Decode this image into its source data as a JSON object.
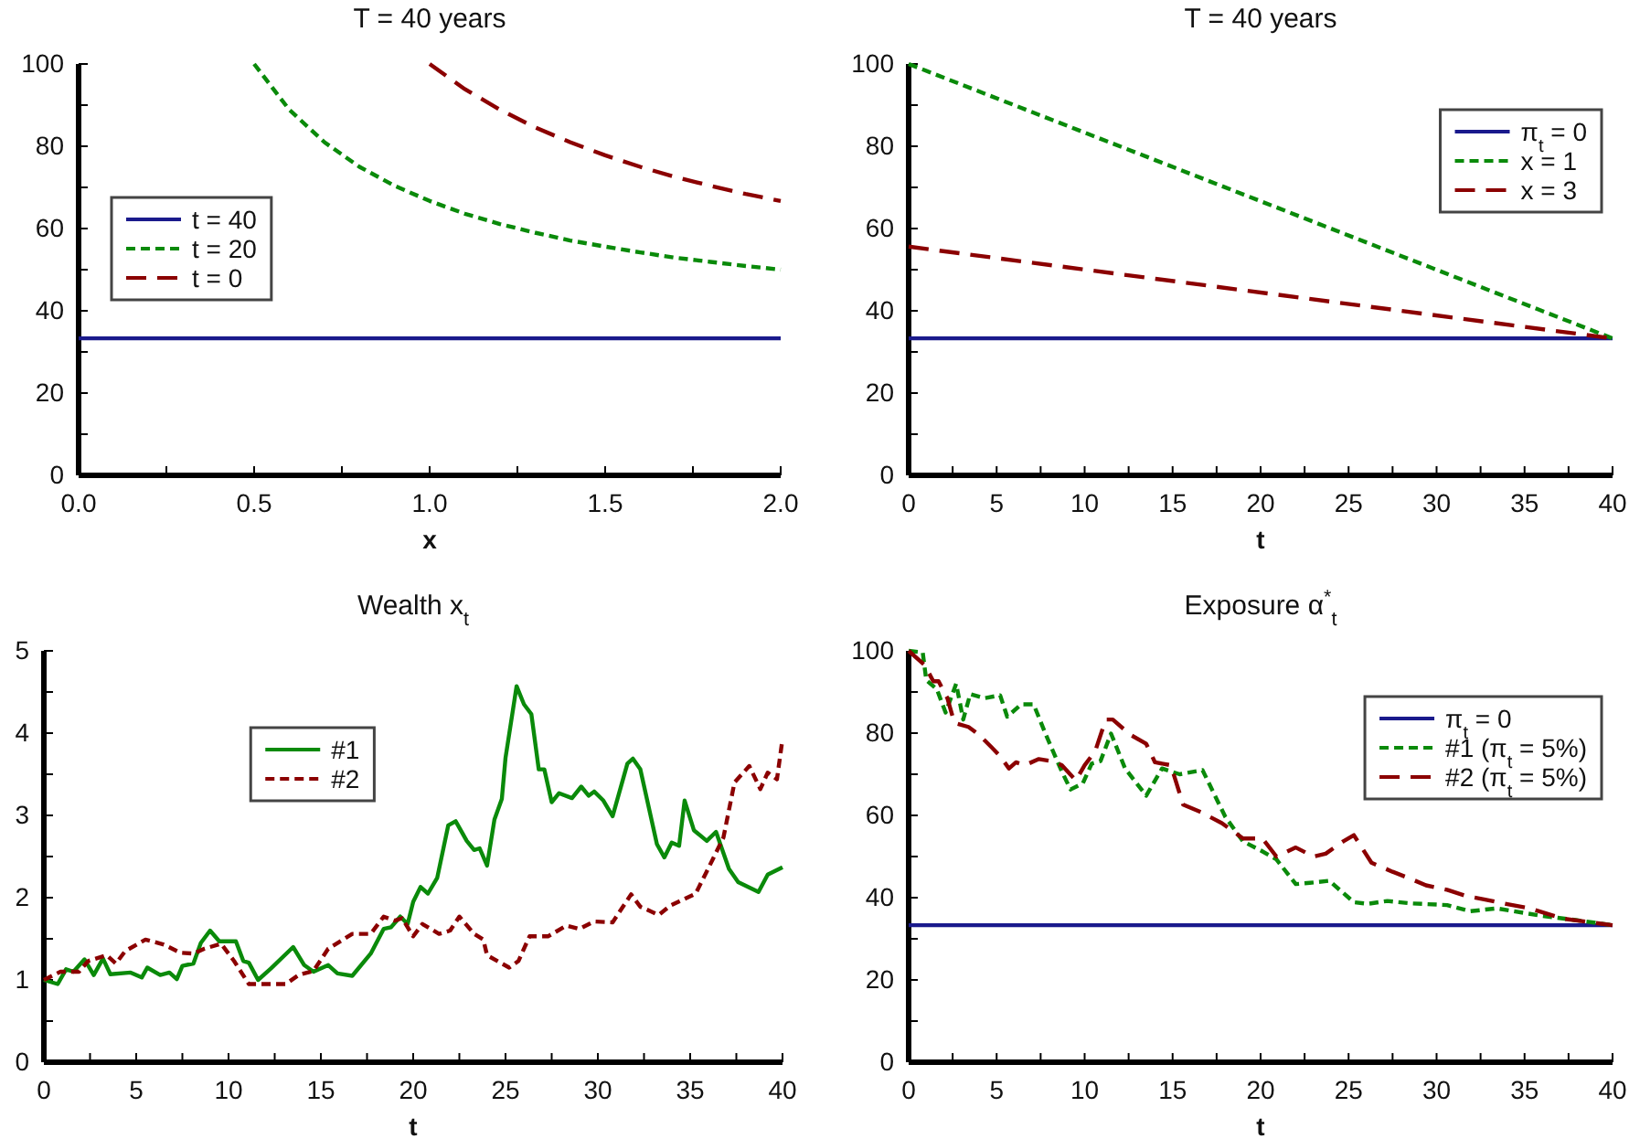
{
  "chart_data": [
    {
      "type": "line",
      "title": "T = 40 years",
      "xlabel": "x",
      "xlim": [
        0,
        2
      ],
      "ylim": [
        0,
        100
      ],
      "xticks": [
        {
          "value": 0,
          "label": "0.0"
        },
        {
          "value": 0.25,
          "label": null
        },
        0.5,
        {
          "value": 0.75,
          "label": null
        },
        {
          "value": 1,
          "label": "1.0"
        },
        {
          "value": 1.25,
          "label": null
        },
        1.5,
        {
          "value": 1.75,
          "label": null
        },
        {
          "value": 2,
          "label": "2.0"
        }
      ],
      "yticks": [
        0,
        {
          "value": 10,
          "label": null
        },
        20,
        {
          "value": 30,
          "label": null
        },
        40,
        {
          "value": 50,
          "label": null
        },
        60,
        {
          "value": 70,
          "label": null
        },
        80,
        {
          "value": 90,
          "label": null
        },
        100
      ],
      "legend": "left",
      "grid": false,
      "series": [
        {
          "name": "t = 40",
          "color": "#1a1a8c",
          "line_style": "solid",
          "x": [
            0,
            2
          ],
          "values": [
            33.3,
            33.3
          ]
        },
        {
          "name": "t = 20",
          "color": "#0a8a0a",
          "line_style": "dashed",
          "x": [
            0.5,
            0.6,
            0.7,
            0.8,
            0.9,
            1.0,
            1.1,
            1.2,
            1.3,
            1.4,
            1.5,
            1.6,
            1.7,
            1.8,
            1.9,
            2.0
          ],
          "values": [
            100,
            88.9,
            81.0,
            75.0,
            70.4,
            66.7,
            63.6,
            61.1,
            59.0,
            57.1,
            55.6,
            54.2,
            52.9,
            51.9,
            50.9,
            50.0
          ]
        },
        {
          "name": "t = 0",
          "color": "#8b0000",
          "line_style": "longdash",
          "x": [
            1.0,
            1.1,
            1.2,
            1.3,
            1.4,
            1.5,
            1.6,
            1.7,
            1.8,
            1.9,
            2.0
          ],
          "values": [
            100,
            93.9,
            88.9,
            84.6,
            81.0,
            77.8,
            75.0,
            72.5,
            70.4,
            68.4,
            66.7
          ]
        }
      ]
    },
    {
      "type": "line",
      "title": "T = 40 years",
      "xlabel": "t",
      "xlim": [
        0,
        40
      ],
      "ylim": [
        0,
        100
      ],
      "xticks": [
        0,
        {
          "value": 2.5,
          "label": null
        },
        5,
        {
          "value": 7.5,
          "label": null
        },
        10,
        {
          "value": 12.5,
          "label": null
        },
        15,
        {
          "value": 17.5,
          "label": null
        },
        20,
        {
          "value": 22.5,
          "label": null
        },
        25,
        {
          "value": 27.5,
          "label": null
        },
        30,
        {
          "value": 32.5,
          "label": null
        },
        35,
        {
          "value": 37.5,
          "label": null
        },
        40
      ],
      "yticks": [
        0,
        {
          "value": 10,
          "label": null
        },
        20,
        {
          "value": 30,
          "label": null
        },
        40,
        {
          "value": 50,
          "label": null
        },
        60,
        {
          "value": 70,
          "label": null
        },
        80,
        {
          "value": 90,
          "label": null
        },
        100
      ],
      "legend": "top right",
      "grid": false,
      "series": [
        {
          "name": "π$_{t}$ = 0",
          "color": "#1a1a8c",
          "line_style": "solid",
          "x": [
            0,
            40
          ],
          "values": [
            33.3,
            33.3
          ]
        },
        {
          "name": "x = 1",
          "color": "#0a8a0a",
          "line_style": "dashed",
          "x": [
            0,
            40
          ],
          "values": [
            100,
            33.3
          ]
        },
        {
          "name": "x = 3",
          "color": "#8b0000",
          "line_style": "longdash",
          "x": [
            0,
            40
          ],
          "values": [
            55.6,
            33.3
          ]
        }
      ]
    },
    {
      "type": "line",
      "title": "Wealth x$_{t}$",
      "xlabel": "t",
      "xlim": [
        0,
        40
      ],
      "ylim": [
        0,
        5
      ],
      "xticks": [
        0,
        {
          "value": 2.5,
          "label": null
        },
        5,
        {
          "value": 7.5,
          "label": null
        },
        10,
        {
          "value": 12.5,
          "label": null
        },
        15,
        {
          "value": 17.5,
          "label": null
        },
        20,
        {
          "value": 22.5,
          "label": null
        },
        25,
        {
          "value": 27.5,
          "label": null
        },
        30,
        {
          "value": 32.5,
          "label": null
        },
        35,
        {
          "value": 37.5,
          "label": null
        },
        40
      ],
      "yticks": [
        0,
        {
          "value": 0.5,
          "label": null
        },
        1,
        {
          "value": 1.5,
          "label": null
        },
        2,
        {
          "value": 2.5,
          "label": null
        },
        3,
        {
          "value": 3.5,
          "label": null
        },
        4,
        {
          "value": 4.5,
          "label": null
        },
        5
      ],
      "legend": "top left",
      "grid": false,
      "series": [
        {
          "name": "#1",
          "color": "#0a8a0a",
          "line_style": "solid",
          "x": [
            0,
            0.75,
            1.2,
            1.6,
            2.2,
            2.7,
            3.2,
            3.6,
            4.7,
            5.3,
            5.6,
            6.3,
            6.8,
            7.2,
            7.5,
            8.1,
            8.5,
            9.0,
            9.5,
            10.4,
            10.8,
            11.1,
            11.6,
            12.3,
            13.5,
            14.1,
            14.6,
            15.4,
            15.9,
            16.7,
            17.7,
            18.4,
            18.8,
            19.3,
            19.7,
            20.0,
            20.4,
            20.8,
            21.3,
            21.9,
            22.3,
            22.9,
            23.3,
            23.6,
            24.0,
            24.4,
            24.8,
            25.0,
            25.6,
            26.0,
            26.4,
            26.8,
            27.1,
            27.5,
            27.9,
            28.6,
            29.1,
            29.5,
            29.8,
            30.3,
            30.8,
            31.6,
            31.9,
            32.3,
            33.2,
            33.6,
            34.0,
            34.4,
            34.7,
            35.2,
            35.9,
            36.4,
            37.1,
            37.6,
            38.7,
            39.2,
            40.0
          ],
          "values": [
            1.0,
            0.95,
            1.13,
            1.1,
            1.25,
            1.06,
            1.26,
            1.07,
            1.09,
            1.03,
            1.15,
            1.06,
            1.09,
            1.01,
            1.17,
            1.2,
            1.45,
            1.6,
            1.47,
            1.47,
            1.23,
            1.21,
            1.0,
            1.14,
            1.4,
            1.18,
            1.1,
            1.18,
            1.08,
            1.05,
            1.32,
            1.62,
            1.64,
            1.77,
            1.68,
            1.95,
            2.13,
            2.05,
            2.24,
            2.88,
            2.93,
            2.69,
            2.58,
            2.6,
            2.39,
            2.95,
            3.2,
            3.7,
            4.57,
            4.35,
            4.23,
            3.56,
            3.56,
            3.16,
            3.27,
            3.21,
            3.35,
            3.24,
            3.29,
            3.18,
            2.99,
            3.63,
            3.69,
            3.56,
            2.65,
            2.49,
            2.67,
            2.63,
            3.18,
            2.82,
            2.69,
            2.8,
            2.35,
            2.19,
            2.07,
            2.28,
            2.37
          ]
        },
        {
          "name": "#2",
          "color": "#8b0000",
          "line_style": "dashed",
          "x": [
            0,
            0.9,
            1.9,
            2.4,
            3.4,
            3.9,
            4.4,
            5.5,
            6.5,
            7.4,
            8.1,
            8.7,
            9.6,
            10.3,
            11.1,
            12.1,
            13.1,
            13.8,
            14.6,
            15.4,
            16.7,
            17.7,
            18.4,
            19.0,
            19.4,
            20.0,
            20.5,
            21.4,
            22.0,
            22.5,
            23.3,
            23.8,
            24.0,
            25.2,
            25.7,
            26.3,
            27.3,
            28.3,
            29.0,
            29.8,
            30.8,
            31.8,
            32.3,
            33.3,
            33.9,
            35.3,
            35.9,
            36.8,
            37.4,
            38.2,
            38.8,
            39.2,
            39.7,
            40.0
          ],
          "values": [
            1.0,
            1.1,
            1.1,
            1.23,
            1.3,
            1.2,
            1.35,
            1.49,
            1.43,
            1.33,
            1.32,
            1.38,
            1.44,
            1.23,
            0.95,
            0.95,
            0.95,
            1.06,
            1.11,
            1.38,
            1.56,
            1.56,
            1.77,
            1.72,
            1.75,
            1.53,
            1.68,
            1.56,
            1.6,
            1.77,
            1.56,
            1.49,
            1.3,
            1.15,
            1.23,
            1.53,
            1.53,
            1.66,
            1.62,
            1.71,
            1.7,
            2.04,
            1.89,
            1.79,
            1.9,
            2.05,
            2.32,
            2.73,
            3.4,
            3.6,
            3.32,
            3.52,
            3.44,
            3.93
          ]
        }
      ]
    },
    {
      "type": "line",
      "title": "Exposure α$^{*}$$_{t}$",
      "xlabel": "t",
      "xlim": [
        0,
        40
      ],
      "ylim": [
        0,
        100
      ],
      "xticks": [
        0,
        {
          "value": 2.5,
          "label": null
        },
        5,
        {
          "value": 7.5,
          "label": null
        },
        10,
        {
          "value": 12.5,
          "label": null
        },
        15,
        {
          "value": 17.5,
          "label": null
        },
        20,
        {
          "value": 22.5,
          "label": null
        },
        25,
        {
          "value": 27.5,
          "label": null
        },
        30,
        {
          "value": 32.5,
          "label": null
        },
        35,
        {
          "value": 37.5,
          "label": null
        },
        40
      ],
      "yticks": [
        0,
        {
          "value": 10,
          "label": null
        },
        20,
        {
          "value": 30,
          "label": null
        },
        40,
        {
          "value": 50,
          "label": null
        },
        60,
        {
          "value": 70,
          "label": null
        },
        80,
        {
          "value": 90,
          "label": null
        },
        100
      ],
      "legend": "top right",
      "grid": false,
      "series": [
        {
          "name": "π$_{t}$ = 0",
          "color": "#1a1a8c",
          "line_style": "solid",
          "x": [
            0,
            40
          ],
          "values": [
            33.3,
            33.3
          ]
        },
        {
          "name": "#1 (π$_{t}$ = 5%)",
          "color": "#0a8a0a",
          "line_style": "dashed",
          "x": [
            0,
            0.8,
            1.0,
            1.6,
            2.1,
            2.7,
            3.1,
            3.5,
            4.3,
            5.2,
            5.6,
            6.4,
            7.1,
            7.8,
            8.7,
            9.2,
            9.9,
            10.4,
            10.9,
            11.5,
            12.3,
            13.5,
            14.4,
            15.4,
            16.7,
            18.0,
            19.0,
            20.0,
            20.9,
            22.0,
            22.8,
            23.9,
            25.3,
            26.1,
            27.2,
            28.6,
            30.6,
            31.9,
            33.4,
            35.8,
            38.0,
            40.0
          ],
          "values": [
            100,
            99.6,
            92.9,
            90.7,
            85,
            92,
            83.3,
            89.5,
            88.5,
            89.2,
            84,
            87,
            87,
            79.6,
            70.7,
            66.3,
            67.8,
            72.6,
            73.2,
            79.9,
            71.4,
            64.8,
            71.4,
            70,
            71,
            59.6,
            53.7,
            51.5,
            49.3,
            43.3,
            43.6,
            44.1,
            38.9,
            38.5,
            39.2,
            38.6,
            38.2,
            36.7,
            37.4,
            35.7,
            34.5,
            33.3
          ]
        },
        {
          "name": "#2 (π$_{t}$ = 5%)",
          "color": "#8b0000",
          "line_style": "longdash",
          "x": [
            0,
            0.9,
            1.4,
            1.7,
            2.2,
            2.6,
            3.4,
            4.0,
            4.7,
            5.2,
            5.7,
            6.1,
            6.6,
            7.4,
            8.1,
            8.7,
            9.5,
            10.0,
            10.6,
            11.2,
            11.6,
            12.6,
            13.5,
            14.0,
            14.9,
            15.6,
            16.6,
            17.8,
            19.0,
            20.1,
            20.9,
            22.0,
            23.0,
            23.7,
            24.7,
            25.3,
            26.3,
            27.5,
            28.4,
            29.4,
            30.6,
            31.7,
            32.7,
            33.8,
            35.3,
            37.2,
            40.0
          ],
          "values": [
            100,
            96.6,
            92.6,
            92.6,
            88.5,
            82.5,
            81.5,
            79.6,
            76.6,
            74.4,
            71.4,
            72.9,
            72.2,
            73.7,
            73.2,
            72.2,
            68.5,
            72.2,
            75.6,
            83.3,
            83.3,
            79.6,
            77.4,
            72.9,
            72.2,
            62.6,
            60.8,
            58.1,
            54.4,
            54.4,
            50,
            52.2,
            50,
            50.7,
            53.7,
            55.2,
            48.5,
            46.3,
            44.8,
            43,
            41.9,
            40.4,
            39.6,
            38.6,
            37.4,
            34.9,
            33.3
          ]
        }
      ]
    }
  ]
}
